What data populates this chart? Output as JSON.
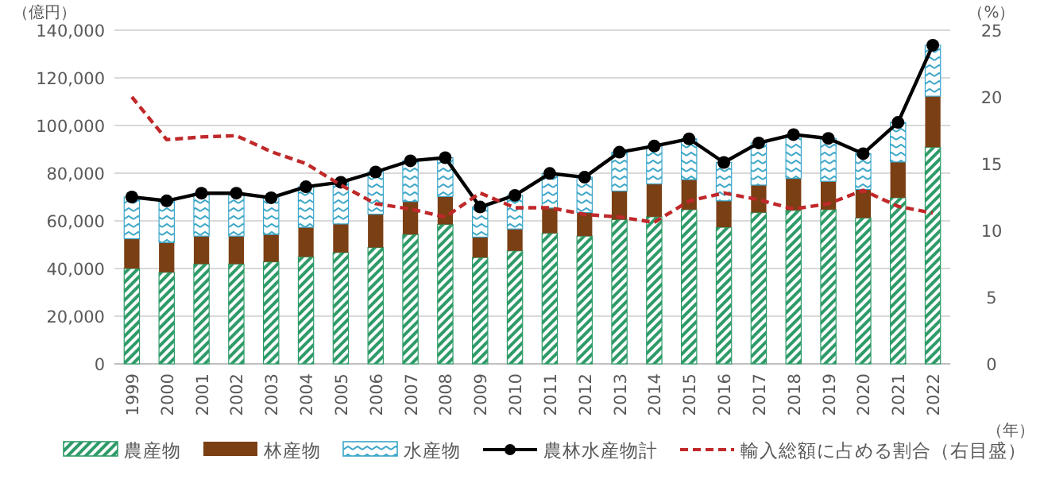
{
  "chart_data": {
    "type": "bar",
    "stacked": true,
    "ylabel": "（億円）",
    "y2label": "（%）",
    "xlabel": "（年）",
    "categories": [
      "1999",
      "2000",
      "2001",
      "2002",
      "2003",
      "2004",
      "2005",
      "2006",
      "2007",
      "2008",
      "2009",
      "2010",
      "2011",
      "2012",
      "2013",
      "2014",
      "2015",
      "2016",
      "2017",
      "2018",
      "2019",
      "2020",
      "2021",
      "2022"
    ],
    "series": [
      {
        "name": "農産物",
        "color": "#2e9b68",
        "values": [
          40000,
          38400,
          41900,
          41900,
          42800,
          44900,
          46700,
          48800,
          54300,
          58500,
          44600,
          47400,
          54800,
          53600,
          60500,
          61700,
          64700,
          57300,
          63500,
          64400,
          64700,
          61200,
          69700,
          90900
        ]
      },
      {
        "name": "林産物",
        "color": "#7b3f14",
        "values": [
          12500,
          12500,
          11700,
          11700,
          11500,
          12400,
          12000,
          14000,
          13800,
          11700,
          8600,
          9200,
          10600,
          9900,
          12000,
          13800,
          12600,
          11100,
          11500,
          13400,
          11900,
          12000,
          15000,
          21400
        ]
      },
      {
        "name": "水産物",
        "color": "#3aa6c8",
        "values": [
          17500,
          17500,
          18000,
          18000,
          15400,
          17000,
          17500,
          17700,
          17100,
          16300,
          12600,
          14100,
          14500,
          14800,
          16300,
          15900,
          17100,
          16100,
          17700,
          18400,
          18000,
          15000,
          16600,
          21400
        ]
      },
      {
        "name": "農林水産物計",
        "type": "line",
        "color": "#000000",
        "marker": "circle",
        "line_style": "solid",
        "values": [
          70000,
          68400,
          71600,
          71600,
          69700,
          74300,
          76200,
          80500,
          85200,
          86500,
          65800,
          70700,
          79900,
          78300,
          88800,
          91400,
          94400,
          84500,
          92700,
          96200,
          94600,
          88200,
          101300,
          133700
        ]
      },
      {
        "name": "輸入総額に占める割合（右目盛）",
        "type": "line",
        "axis": "y2",
        "color": "#c0282a",
        "marker": "none",
        "line_style": "dashed",
        "values": [
          20.0,
          16.8,
          17.0,
          17.1,
          15.9,
          15.0,
          13.4,
          12.0,
          11.6,
          11.0,
          12.8,
          11.7,
          11.7,
          11.2,
          11.0,
          10.6,
          12.2,
          12.8,
          12.3,
          11.6,
          12.0,
          13.0,
          11.8,
          11.3
        ]
      }
    ],
    "ylim": [
      0,
      140000
    ],
    "yticks": [
      0,
      {
        "value": 20000,
        "label": "20,000"
      },
      {
        "value": 40000,
        "label": "40,000"
      },
      {
        "value": 60000,
        "label": "60,000"
      },
      {
        "value": 80000,
        "label": "80,000"
      },
      {
        "value": 100000,
        "label": "100,000"
      },
      {
        "value": 120000,
        "label": "120,000"
      },
      {
        "value": 140000,
        "label": "140,000"
      }
    ],
    "y2lim": [
      0,
      25
    ],
    "y2ticks": [
      0,
      5,
      10,
      15,
      20,
      25
    ],
    "grid": "y",
    "legend": "bottom"
  }
}
